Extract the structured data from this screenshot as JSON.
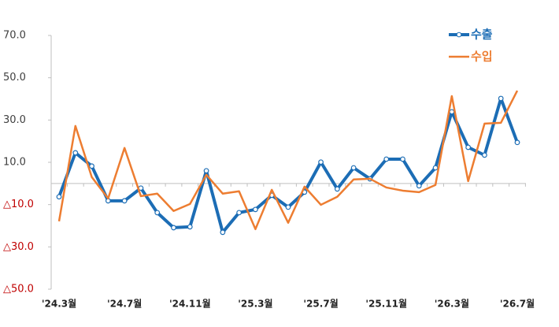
{
  "chart_data": {
    "type": "line",
    "categories": [
      "'24.3월",
      null,
      null,
      null,
      "'24.7월",
      null,
      null,
      null,
      "'24.11월",
      null,
      null,
      null,
      "'25.3월",
      null,
      null,
      null,
      "'25.7월",
      null,
      null,
      null,
      "'25.11월",
      null,
      null,
      null,
      "'26.3월",
      null,
      null,
      null,
      "'26.7월"
    ],
    "series": [
      {
        "name": "수출",
        "color": "#1c6db5",
        "markers": true,
        "values": [
          -6.3,
          14.5,
          8.2,
          -8.2,
          -8.2,
          -2.2,
          -13.8,
          -20.9,
          -20.5,
          6.0,
          -23.1,
          -13.8,
          -12.3,
          -5.6,
          -11.2,
          -4.1,
          10.1,
          -2.6,
          7.4,
          2.2,
          11.5,
          11.5,
          -1.1,
          7.4,
          33.9,
          17.1,
          13.4,
          40.2,
          19.4
        ]
      },
      {
        "name": "수입",
        "color": "#ed7d31",
        "markers": false,
        "values": [
          -17.9,
          27.2,
          3.0,
          -7.1,
          16.8,
          -6.0,
          -4.8,
          -13.0,
          -9.7,
          4.1,
          -4.8,
          -3.7,
          -21.6,
          -3.0,
          -18.6,
          -1.5,
          -10.1,
          -6.3,
          1.9,
          2.2,
          -1.9,
          -3.4,
          -4.1,
          -0.7,
          41.3,
          1.1,
          28.3,
          28.7,
          43.9
        ]
      }
    ],
    "ylim": [
      -50,
      70
    ],
    "yticks": [
      {
        "value": 70,
        "label": "70.0"
      },
      {
        "value": 50,
        "label": "50.0"
      },
      {
        "value": 30,
        "label": "30.0"
      },
      {
        "value": 10,
        "label": "10.0"
      },
      {
        "value": -10,
        "label": "△10.0"
      },
      {
        "value": -30,
        "label": "△30.0"
      },
      {
        "value": -50,
        "label": "△50.0"
      }
    ],
    "negative_label_color": "#c00000",
    "legend": "top-right"
  }
}
